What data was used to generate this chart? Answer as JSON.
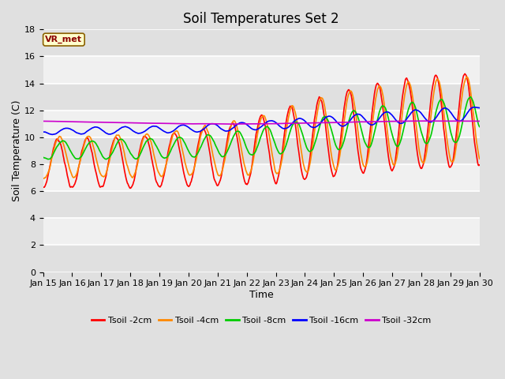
{
  "title": "Soil Temperatures Set 2",
  "xlabel": "Time",
  "ylabel": "Soil Temperature (C)",
  "annotation": "VR_met",
  "ylim": [
    0,
    18
  ],
  "yticks": [
    0,
    2,
    4,
    6,
    8,
    10,
    12,
    14,
    16,
    18
  ],
  "date_labels": [
    "Jan 15",
    "Jan 16",
    "Jan 17",
    "Jan 18",
    "Jan 19",
    "Jan 20",
    "Jan 21",
    "Jan 22",
    "Jan 23",
    "Jan 24",
    "Jan 25",
    "Jan 26",
    "Jan 27",
    "Jan 28",
    "Jan 29",
    "Jan 30"
  ],
  "series_order": [
    "Tsoil -2cm",
    "Tsoil -4cm",
    "Tsoil -8cm",
    "Tsoil -16cm",
    "Tsoil -32cm"
  ],
  "series_colors": [
    "#ff0000",
    "#ff8800",
    "#00cc00",
    "#0000ff",
    "#cc00cc"
  ],
  "linewidth": 1.2,
  "fig_bg": "#e0e0e0",
  "plot_bg": "#f0f0f0",
  "grid_color": "#ffffff",
  "title_fontsize": 12,
  "axis_label_fontsize": 9,
  "tick_fontsize": 8
}
